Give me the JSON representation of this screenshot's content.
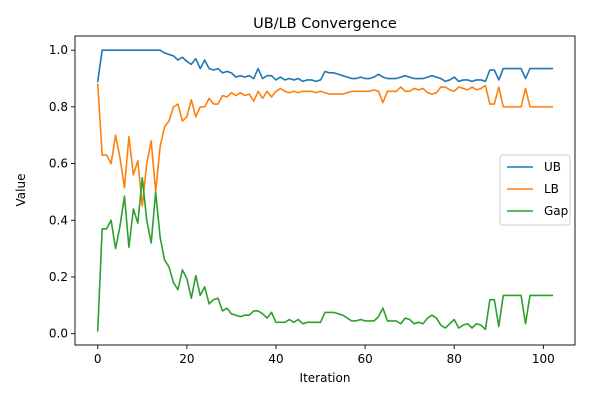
{
  "chart_data": {
    "type": "line",
    "title": "UB/LB Convergence",
    "xlabel": "Iteration",
    "ylabel": "Value",
    "xlim": [
      -5.1,
      107.1
    ],
    "ylim": [
      -0.04,
      1.05
    ],
    "x_ticks": [
      0,
      20,
      40,
      60,
      80,
      100
    ],
    "y_ticks": [
      0.0,
      0.2,
      0.4,
      0.6,
      0.8,
      1.0
    ],
    "grid": false,
    "legend_position": "center-right",
    "x": [
      0,
      1,
      2,
      3,
      4,
      5,
      6,
      7,
      8,
      9,
      10,
      11,
      12,
      13,
      14,
      15,
      16,
      17,
      18,
      19,
      20,
      21,
      22,
      23,
      24,
      25,
      26,
      27,
      28,
      29,
      30,
      31,
      32,
      33,
      34,
      35,
      36,
      37,
      38,
      39,
      40,
      41,
      42,
      43,
      44,
      45,
      46,
      47,
      48,
      49,
      50,
      51,
      52,
      53,
      54,
      55,
      56,
      57,
      58,
      59,
      60,
      61,
      62,
      63,
      64,
      65,
      66,
      67,
      68,
      69,
      70,
      71,
      72,
      73,
      74,
      75,
      76,
      77,
      78,
      79,
      80,
      81,
      82,
      83,
      84,
      85,
      86,
      87,
      88,
      89,
      90,
      91,
      92,
      93,
      94,
      95,
      96,
      97,
      98,
      99,
      100,
      101,
      102
    ],
    "series": [
      {
        "name": "UB",
        "color": "#1f77b4",
        "values": [
          0.89,
          1.0,
          1.0,
          1.0,
          1.0,
          1.0,
          1.0,
          1.0,
          1.0,
          1.0,
          1.0,
          1.0,
          1.0,
          1.0,
          1.0,
          0.99,
          0.985,
          0.98,
          0.965,
          0.975,
          0.96,
          0.95,
          0.97,
          0.935,
          0.965,
          0.935,
          0.93,
          0.935,
          0.92,
          0.925,
          0.92,
          0.905,
          0.91,
          0.905,
          0.91,
          0.9,
          0.935,
          0.9,
          0.91,
          0.91,
          0.895,
          0.905,
          0.895,
          0.9,
          0.895,
          0.9,
          0.89,
          0.895,
          0.895,
          0.89,
          0.895,
          0.925,
          0.92,
          0.92,
          0.915,
          0.91,
          0.905,
          0.9,
          0.9,
          0.905,
          0.9,
          0.9,
          0.905,
          0.915,
          0.905,
          0.9,
          0.9,
          0.9,
          0.905,
          0.91,
          0.905,
          0.9,
          0.9,
          0.9,
          0.905,
          0.91,
          0.905,
          0.9,
          0.89,
          0.895,
          0.905,
          0.89,
          0.895,
          0.895,
          0.89,
          0.895,
          0.895,
          0.89,
          0.93,
          0.93,
          0.895,
          0.935,
          0.935,
          0.935,
          0.935,
          0.935,
          0.9,
          0.935,
          0.935,
          0.935,
          0.935,
          0.935,
          0.935
        ]
      },
      {
        "name": "LB",
        "color": "#ff7f0e",
        "values": [
          0.88,
          0.63,
          0.63,
          0.6,
          0.7,
          0.62,
          0.515,
          0.695,
          0.56,
          0.61,
          0.45,
          0.6,
          0.68,
          0.5,
          0.66,
          0.73,
          0.75,
          0.8,
          0.81,
          0.75,
          0.765,
          0.825,
          0.765,
          0.8,
          0.8,
          0.83,
          0.81,
          0.81,
          0.84,
          0.835,
          0.85,
          0.84,
          0.85,
          0.84,
          0.845,
          0.82,
          0.855,
          0.83,
          0.855,
          0.835,
          0.855,
          0.865,
          0.855,
          0.85,
          0.855,
          0.85,
          0.855,
          0.855,
          0.855,
          0.85,
          0.855,
          0.85,
          0.845,
          0.845,
          0.845,
          0.845,
          0.85,
          0.855,
          0.855,
          0.855,
          0.855,
          0.855,
          0.86,
          0.855,
          0.815,
          0.855,
          0.855,
          0.855,
          0.87,
          0.855,
          0.855,
          0.865,
          0.86,
          0.865,
          0.85,
          0.845,
          0.85,
          0.87,
          0.87,
          0.86,
          0.855,
          0.87,
          0.865,
          0.86,
          0.87,
          0.86,
          0.865,
          0.875,
          0.81,
          0.81,
          0.87,
          0.8,
          0.8,
          0.8,
          0.8,
          0.8,
          0.865,
          0.8,
          0.8,
          0.8,
          0.8,
          0.8,
          0.8
        ]
      },
      {
        "name": "Gap",
        "color": "#2ca02c",
        "values": [
          0.01,
          0.37,
          0.37,
          0.4,
          0.3,
          0.38,
          0.485,
          0.305,
          0.44,
          0.39,
          0.55,
          0.4,
          0.32,
          0.5,
          0.34,
          0.26,
          0.235,
          0.18,
          0.155,
          0.225,
          0.195,
          0.125,
          0.205,
          0.135,
          0.165,
          0.105,
          0.12,
          0.125,
          0.08,
          0.09,
          0.07,
          0.065,
          0.06,
          0.065,
          0.065,
          0.08,
          0.08,
          0.07,
          0.055,
          0.075,
          0.04,
          0.04,
          0.04,
          0.05,
          0.04,
          0.05,
          0.035,
          0.04,
          0.04,
          0.04,
          0.04,
          0.075,
          0.075,
          0.075,
          0.07,
          0.065,
          0.055,
          0.045,
          0.045,
          0.05,
          0.045,
          0.045,
          0.045,
          0.06,
          0.09,
          0.045,
          0.045,
          0.045,
          0.035,
          0.055,
          0.05,
          0.035,
          0.04,
          0.035,
          0.055,
          0.065,
          0.055,
          0.03,
          0.02,
          0.035,
          0.05,
          0.02,
          0.03,
          0.035,
          0.02,
          0.035,
          0.03,
          0.015,
          0.12,
          0.12,
          0.025,
          0.135,
          0.135,
          0.135,
          0.135,
          0.135,
          0.035,
          0.135,
          0.135,
          0.135,
          0.135,
          0.135,
          0.135
        ]
      }
    ]
  }
}
